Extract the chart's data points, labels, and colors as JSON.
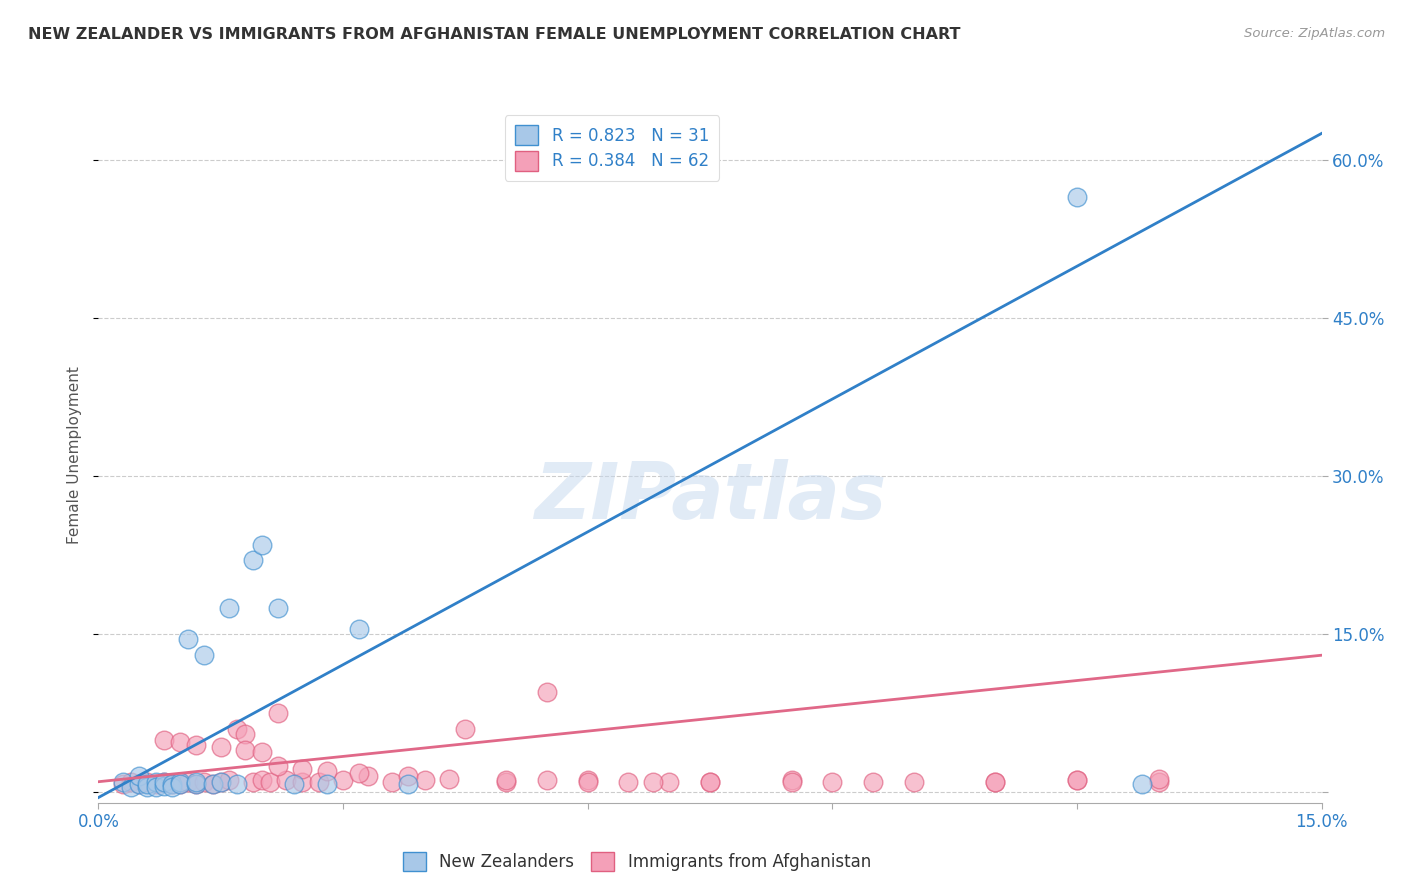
{
  "title": "NEW ZEALANDER VS IMMIGRANTS FROM AFGHANISTAN FEMALE UNEMPLOYMENT CORRELATION CHART",
  "source": "Source: ZipAtlas.com",
  "ylabel": "Female Unemployment",
  "xlim": [
    0.0,
    0.15
  ],
  "ylim": [
    -0.01,
    0.65
  ],
  "yticks": [
    0.0,
    0.15,
    0.3,
    0.45,
    0.6
  ],
  "ytick_labels": [
    "",
    "15.0%",
    "30.0%",
    "45.0%",
    "60.0%"
  ],
  "xticks": [
    0.0,
    0.03,
    0.06,
    0.09,
    0.12,
    0.15
  ],
  "xtick_labels": [
    "0.0%",
    "",
    "",
    "",
    "",
    "15.0%"
  ],
  "legend_r1": "R = 0.823",
  "legend_n1": "N = 31",
  "legend_r2": "R = 0.384",
  "legend_n2": "N = 62",
  "blue_fill": "#a8c8e8",
  "blue_edge": "#4090d0",
  "pink_fill": "#f4a0b8",
  "pink_edge": "#e06080",
  "blue_line": "#3080c8",
  "pink_line": "#e06888",
  "watermark": "ZIPatlas",
  "nz_x": [
    0.003,
    0.004,
    0.005,
    0.005,
    0.006,
    0.006,
    0.007,
    0.007,
    0.008,
    0.008,
    0.009,
    0.009,
    0.01,
    0.01,
    0.011,
    0.012,
    0.012,
    0.013,
    0.014,
    0.015,
    0.016,
    0.017,
    0.019,
    0.02,
    0.022,
    0.024,
    0.028,
    0.032,
    0.038,
    0.12,
    0.128
  ],
  "nz_y": [
    0.01,
    0.005,
    0.008,
    0.015,
    0.005,
    0.008,
    0.01,
    0.005,
    0.006,
    0.01,
    0.008,
    0.005,
    0.01,
    0.008,
    0.145,
    0.008,
    0.01,
    0.13,
    0.008,
    0.01,
    0.175,
    0.008,
    0.22,
    0.235,
    0.175,
    0.008,
    0.008,
    0.155,
    0.008,
    0.565,
    0.008
  ],
  "afg_x": [
    0.003,
    0.004,
    0.005,
    0.006,
    0.007,
    0.008,
    0.009,
    0.01,
    0.011,
    0.012,
    0.013,
    0.014,
    0.015,
    0.016,
    0.017,
    0.018,
    0.019,
    0.02,
    0.021,
    0.022,
    0.023,
    0.025,
    0.027,
    0.03,
    0.033,
    0.036,
    0.04,
    0.045,
    0.05,
    0.055,
    0.06,
    0.065,
    0.07,
    0.075,
    0.085,
    0.095,
    0.11,
    0.12,
    0.13,
    0.008,
    0.01,
    0.012,
    0.015,
    0.018,
    0.02,
    0.022,
    0.025,
    0.028,
    0.032,
    0.038,
    0.043,
    0.05,
    0.055,
    0.06,
    0.068,
    0.075,
    0.085,
    0.09,
    0.1,
    0.11,
    0.12,
    0.13
  ],
  "afg_y": [
    0.008,
    0.01,
    0.008,
    0.01,
    0.008,
    0.01,
    0.008,
    0.008,
    0.01,
    0.008,
    0.01,
    0.008,
    0.01,
    0.012,
    0.06,
    0.055,
    0.01,
    0.012,
    0.01,
    0.075,
    0.012,
    0.01,
    0.01,
    0.012,
    0.015,
    0.01,
    0.012,
    0.06,
    0.01,
    0.095,
    0.012,
    0.01,
    0.01,
    0.01,
    0.012,
    0.01,
    0.01,
    0.012,
    0.01,
    0.05,
    0.048,
    0.045,
    0.043,
    0.04,
    0.038,
    0.025,
    0.022,
    0.02,
    0.018,
    0.015,
    0.013,
    0.012,
    0.012,
    0.01,
    0.01,
    0.01,
    0.01,
    0.01,
    0.01,
    0.01,
    0.012,
    0.013
  ],
  "blue_line_x": [
    0.0,
    0.15
  ],
  "blue_line_y": [
    -0.005,
    0.625
  ],
  "pink_line_x": [
    0.0,
    0.15
  ],
  "pink_line_y": [
    0.01,
    0.13
  ]
}
